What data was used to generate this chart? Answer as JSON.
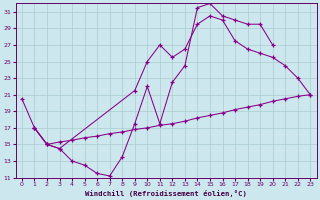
{
  "xlabel": "Windchill (Refroidissement éolien,°C)",
  "bg_color": "#cce8ee",
  "line_color": "#880088",
  "grid_color": "#aacccc",
  "ylim": [
    11,
    32
  ],
  "xlim": [
    -0.5,
    23.5
  ],
  "yticks": [
    11,
    13,
    15,
    17,
    19,
    21,
    23,
    25,
    27,
    29,
    31
  ],
  "xticks": [
    0,
    1,
    2,
    3,
    4,
    5,
    6,
    7,
    8,
    9,
    10,
    11,
    12,
    13,
    14,
    15,
    16,
    17,
    18,
    19,
    20,
    21,
    22,
    23
  ],
  "line1_x": [
    0,
    1,
    2,
    3,
    4,
    5,
    6,
    7,
    8,
    9,
    10,
    11,
    12,
    13,
    14,
    15,
    16,
    17,
    18,
    19,
    20
  ],
  "line1_y": [
    20.5,
    17.0,
    15.0,
    14.5,
    13.0,
    12.5,
    11.5,
    11.2,
    13.5,
    17.5,
    22.0,
    17.5,
    22.5,
    24.5,
    31.5,
    32.0,
    30.5,
    30.0,
    29.5,
    29.5,
    27.0
  ],
  "line2_x": [
    1,
    2,
    3,
    9,
    10,
    11,
    12,
    13,
    14,
    15,
    16,
    17,
    18,
    19,
    20,
    21,
    22,
    23
  ],
  "line2_y": [
    17.0,
    15.0,
    14.5,
    21.5,
    25.0,
    27.0,
    25.5,
    26.5,
    29.5,
    30.5,
    30.0,
    27.5,
    26.5,
    26.0,
    25.5,
    24.5,
    23.0,
    21.0
  ],
  "line3_x": [
    1,
    2,
    3,
    4,
    5,
    6,
    7,
    8,
    9,
    10,
    11,
    12,
    13,
    14,
    15,
    16,
    17,
    18,
    19,
    20,
    21,
    22,
    23
  ],
  "line3_y": [
    17.0,
    15.0,
    15.3,
    15.5,
    15.8,
    16.0,
    16.3,
    16.5,
    16.8,
    17.0,
    17.3,
    17.5,
    17.8,
    18.2,
    18.5,
    18.8,
    19.2,
    19.5,
    19.8,
    20.2,
    20.5,
    20.8,
    21.0
  ]
}
